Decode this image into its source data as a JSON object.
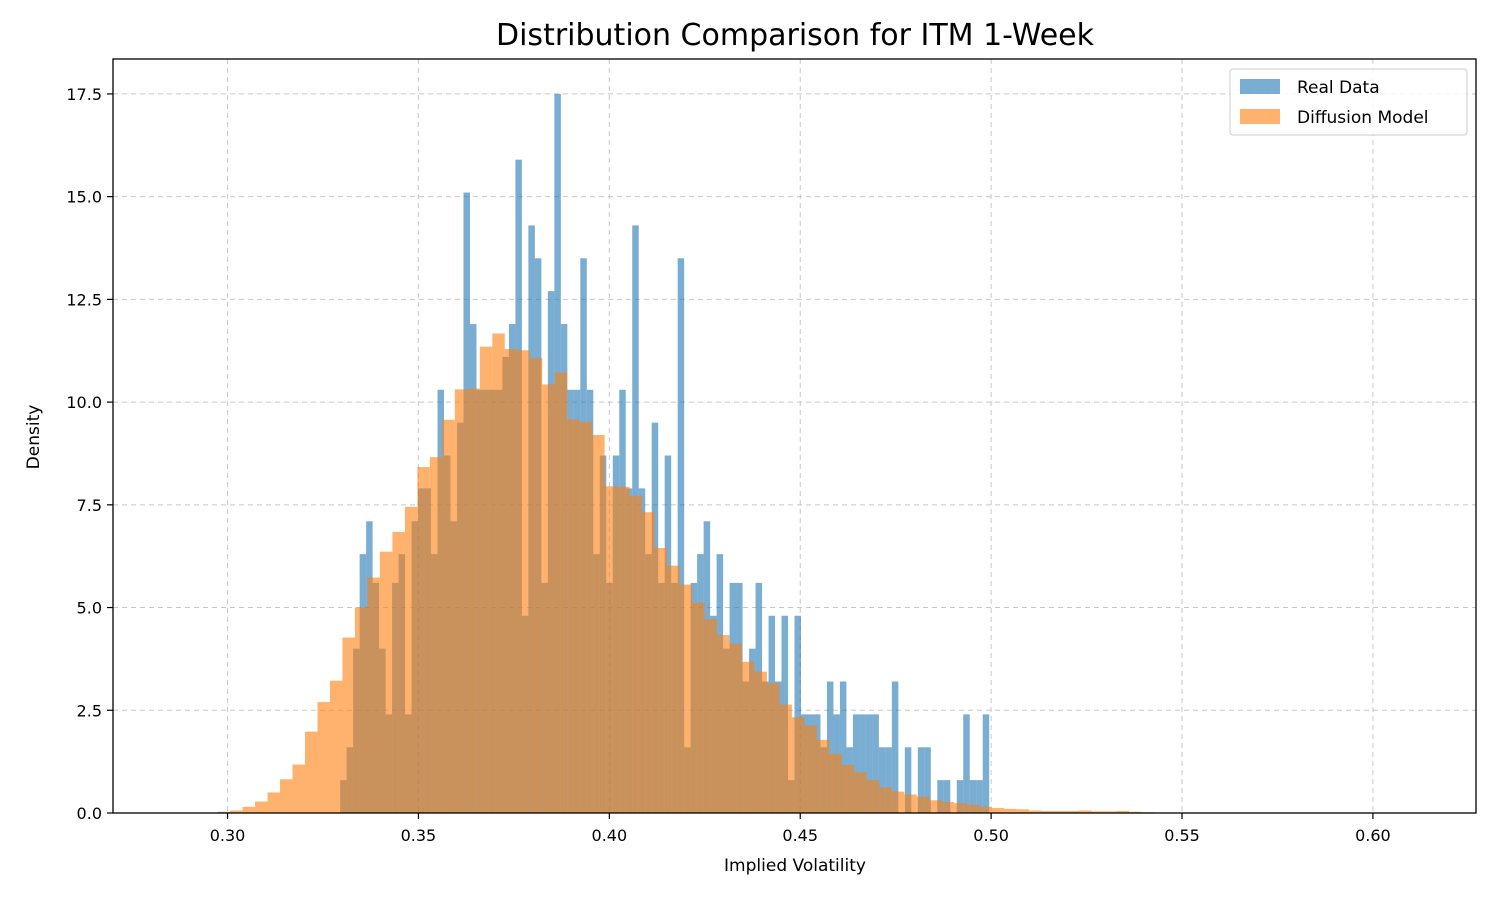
{
  "chart_data": {
    "type": "histogram",
    "title": "Distribution Comparison for ITM 1-Week",
    "xlabel": "Implied Volatility",
    "ylabel": "Density",
    "xlim": [
      0.27,
      0.627
    ],
    "ylim": [
      0,
      18.35
    ],
    "xticks": [
      0.3,
      0.35,
      0.4,
      0.45,
      0.5,
      0.55,
      0.6
    ],
    "xtick_labels": [
      "0.30",
      "0.35",
      "0.40",
      "0.45",
      "0.50",
      "0.55",
      "0.60"
    ],
    "yticks": [
      0.0,
      2.5,
      5.0,
      7.5,
      10.0,
      12.5,
      15.0,
      17.5
    ],
    "ytick_labels": [
      "0.0",
      "2.5",
      "5.0",
      "7.5",
      "10.0",
      "12.5",
      "15.0",
      "17.5"
    ],
    "grid": true,
    "legend_position": "top-right",
    "series": [
      {
        "name": "Real Data",
        "color": "#1f77b4",
        "alpha": 0.6,
        "bin_start": 0.3295,
        "bin_width": 0.0017,
        "values": [
          0.8,
          1.6,
          4.0,
          6.3,
          7.1,
          5.6,
          4.0,
          2.4,
          5.6,
          6.3,
          2.4,
          7.1,
          7.9,
          7.9,
          6.3,
          10.3,
          8.7,
          7.1,
          9.5,
          15.1,
          11.9,
          10.3,
          10.3,
          10.3,
          10.3,
          11.1,
          11.9,
          15.9,
          4.8,
          14.3,
          13.5,
          5.6,
          12.7,
          17.5,
          11.9,
          10.3,
          10.3,
          13.5,
          10.3,
          6.3,
          8.7,
          5.6,
          8.7,
          10.3,
          7.9,
          14.3,
          7.9,
          6.3,
          9.5,
          5.6,
          8.7,
          5.6,
          13.5,
          1.6,
          5.6,
          6.3,
          7.1,
          4.8,
          6.3,
          4.0,
          5.6,
          5.6,
          3.2,
          4.0,
          5.6,
          3.2,
          4.8,
          3.2,
          4.8,
          0.8,
          4.8,
          2.4,
          2.4,
          2.4,
          1.6,
          3.2,
          2.4,
          3.2,
          1.6,
          2.4,
          2.4,
          2.4,
          2.4,
          1.6,
          1.6,
          3.2,
          0.0,
          1.6,
          0.0,
          1.6,
          1.6,
          0.0,
          0.8,
          0.8,
          0.0,
          0.8,
          2.4,
          0.8,
          0.8,
          2.4
        ]
      },
      {
        "name": "Diffusion Model",
        "color": "#ff7f0e",
        "alpha": 0.6,
        "bin_start": 0.2974,
        "bin_width": 0.00327,
        "values": [
          0.03,
          0.06,
          0.15,
          0.28,
          0.5,
          0.82,
          1.18,
          1.98,
          2.7,
          3.22,
          4.27,
          5.0,
          5.73,
          6.36,
          6.84,
          7.45,
          8.42,
          8.66,
          9.57,
          10.31,
          10.33,
          11.35,
          11.67,
          11.29,
          11.26,
          11.07,
          10.43,
          10.72,
          9.58,
          9.52,
          9.2,
          7.95,
          7.94,
          7.72,
          7.32,
          6.45,
          6.02,
          5.56,
          5.12,
          4.72,
          4.33,
          4.12,
          3.68,
          3.44,
          3.16,
          2.64,
          2.33,
          2.13,
          1.78,
          1.44,
          1.17,
          0.99,
          0.8,
          0.62,
          0.52,
          0.45,
          0.4,
          0.31,
          0.27,
          0.24,
          0.2,
          0.15,
          0.12,
          0.1,
          0.09,
          0.06,
          0.05,
          0.05,
          0.05,
          0.06,
          0.04,
          0.04,
          0.05,
          0.03,
          0.02
        ]
      }
    ]
  }
}
